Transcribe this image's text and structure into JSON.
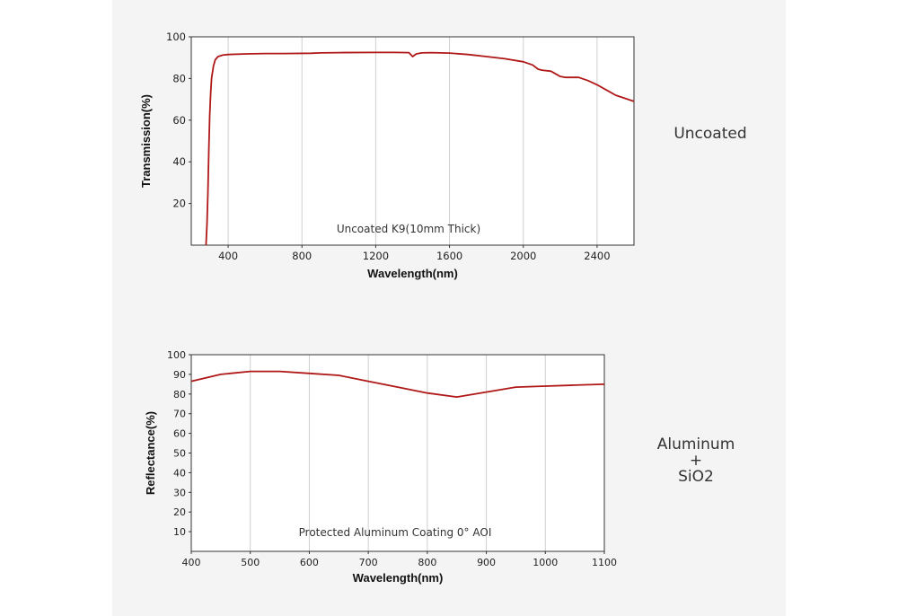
{
  "colors": {
    "curve": "#b01818",
    "grid": "#cfcfcf",
    "axis": "#333333",
    "panel": "#f4f4f4"
  },
  "labels": {
    "chart1_side": "Uncoated",
    "chart2_side_line1": "Aluminum",
    "chart2_side_line2": "+",
    "chart2_side_line3": "SiO2"
  },
  "chart_data": [
    {
      "type": "line",
      "title": "",
      "annotation": "Uncoated K9(10mm Thick)",
      "xlabel": "Wavelength(nm)",
      "ylabel": "Transmission(%)",
      "xlim": [
        200,
        2600
      ],
      "ylim": [
        0,
        100
      ],
      "x_ticks": [
        400,
        800,
        1200,
        1600,
        2000,
        2400
      ],
      "y_ticks": [
        20,
        40,
        60,
        80,
        100
      ],
      "grid": "vertical",
      "series": [
        {
          "name": "Uncoated K9",
          "x": [
            280,
            285,
            290,
            295,
            300,
            305,
            310,
            320,
            330,
            345,
            370,
            400,
            500,
            600,
            700,
            850,
            900,
            1000,
            1200,
            1300,
            1380,
            1400,
            1420,
            1450,
            1500,
            1600,
            1700,
            1800,
            1900,
            2000,
            2050,
            2080,
            2100,
            2150,
            2180,
            2200,
            2230,
            2300,
            2350,
            2400,
            2450,
            2500,
            2600
          ],
          "values": [
            0,
            10,
            25,
            45,
            62,
            73,
            80,
            86,
            89,
            90.5,
            91.2,
            91.5,
            91.8,
            92,
            92,
            92.1,
            92.3,
            92.4,
            92.5,
            92.5,
            92.4,
            90.5,
            91.8,
            92.3,
            92.4,
            92.2,
            91.5,
            90.5,
            89.5,
            88,
            86.5,
            84.5,
            84,
            83.5,
            82,
            81,
            80.5,
            80.5,
            79,
            77,
            74.5,
            72,
            69
          ]
        }
      ]
    },
    {
      "type": "line",
      "title": "",
      "annotation": "Protected Aluminum Coating  0°  AOI",
      "xlabel": "Wavelength(nm)",
      "ylabel": "Reflectance(%)",
      "xlim": [
        400,
        1100
      ],
      "ylim": [
        0,
        100
      ],
      "x_ticks": [
        400,
        500,
        600,
        700,
        800,
        900,
        1000,
        1100
      ],
      "y_ticks": [
        10,
        20,
        30,
        40,
        50,
        60,
        70,
        80,
        90,
        100
      ],
      "grid": "vertical",
      "series": [
        {
          "name": "Protected Aluminum",
          "x": [
            400,
            450,
            500,
            550,
            600,
            650,
            700,
            750,
            800,
            850,
            900,
            950,
            1000,
            1050,
            1100
          ],
          "values": [
            86.5,
            90,
            91.5,
            91.5,
            90.5,
            89.5,
            86.5,
            83.5,
            80.5,
            78.5,
            81,
            83.5,
            84,
            84.5,
            85
          ]
        }
      ]
    }
  ]
}
